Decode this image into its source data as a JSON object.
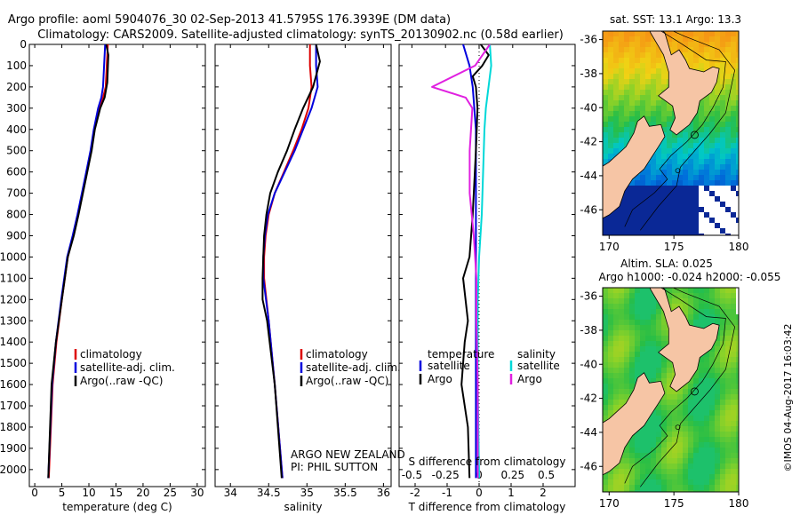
{
  "title": {
    "line1": "Argo profile: aoml 5904076_30 02-Sep-2013 41.5795S 176.3939E (DM data)",
    "line2": "Climatology: CARS2009. Satellite-adjusted climatology: synTS_20130902.nc (0.58d earlier)"
  },
  "colors": {
    "climatology": "#dd0000",
    "satellite_adj": "#0000dd",
    "argo": "#000000",
    "sal_satellite": "#00d8d8",
    "sal_argo": "#e020e0",
    "land": "#f6c5a5",
    "ocean_blank": "#ffffff"
  },
  "depth_axis": {
    "ticks": [
      "0",
      "100",
      "200",
      "300",
      "400",
      "500",
      "600",
      "700",
      "800",
      "900",
      "1000",
      "1100",
      "1200",
      "1300",
      "1400",
      "1500",
      "1600",
      "1700",
      "1800",
      "1900",
      "2000"
    ]
  },
  "chart_data": [
    {
      "type": "line",
      "id": "temperature",
      "xlabel": "temperature (deg C)",
      "xlim": [
        -1,
        31.5
      ],
      "ylim": [
        0,
        2080
      ],
      "xticks": [
        "0",
        "5",
        "10",
        "15",
        "20",
        "25",
        "30"
      ],
      "legend": [
        "climatology",
        "satellite-adj. clim.",
        "Argo(..raw -QC)"
      ],
      "series": [
        {
          "name": "climatology",
          "x": [
            13.5,
            13.3,
            13.1,
            12.6,
            11.9,
            11.0,
            10.4,
            9.6,
            8.8,
            8.0,
            7.1,
            6.1,
            5.0,
            4.0,
            3.3,
            2.6
          ],
          "y": [
            0,
            100,
            200,
            250,
            300,
            400,
            500,
            600,
            700,
            800,
            900,
            1000,
            1200,
            1400,
            1600,
            2040
          ]
        },
        {
          "name": "satellite-adj. clim.",
          "x": [
            13.0,
            12.8,
            12.6,
            12.3,
            11.7,
            10.9,
            10.3,
            9.5,
            8.7,
            7.9,
            7.0,
            6.0,
            4.9,
            3.9,
            3.2,
            2.5
          ],
          "y": [
            0,
            100,
            200,
            250,
            300,
            400,
            500,
            600,
            700,
            800,
            900,
            1000,
            1200,
            1400,
            1600,
            2040
          ]
        },
        {
          "name": "Argo(..raw -QC)",
          "x": [
            13.2,
            13.6,
            13.4,
            12.9,
            12.1,
            11.1,
            10.5,
            9.7,
            8.9,
            8.1,
            7.2,
            6.1,
            5.0,
            3.9,
            3.1,
            2.5
          ],
          "y": [
            0,
            50,
            180,
            250,
            300,
            400,
            500,
            600,
            700,
            800,
            900,
            1000,
            1200,
            1400,
            1600,
            2040
          ]
        }
      ]
    },
    {
      "type": "line",
      "id": "salinity",
      "xlabel": "salinity",
      "xlim": [
        33.8,
        36.1
      ],
      "ylim": [
        0,
        2080
      ],
      "xticks": [
        "34",
        "34.5",
        "35",
        "35.5",
        "36"
      ],
      "legend": [
        "climatology",
        "satellite-adj. clim.",
        "Argo(..raw -QC)"
      ],
      "annotation": [
        "ARGO NEW ZEALAND",
        "PI: PHIL SUTTON"
      ],
      "series": [
        {
          "name": "climatology",
          "x": [
            35.04,
            35.04,
            35.06,
            35.02,
            34.93,
            34.82,
            34.7,
            34.58,
            34.5,
            34.46,
            34.44,
            34.44,
            34.5,
            34.58,
            34.68
          ],
          "y": [
            0,
            100,
            200,
            300,
            400,
            500,
            600,
            700,
            800,
            900,
            1000,
            1100,
            1300,
            1600,
            2040
          ]
        },
        {
          "name": "satellite-adj. clim.",
          "x": [
            35.12,
            35.12,
            35.14,
            35.06,
            34.95,
            34.84,
            34.71,
            34.58,
            34.49,
            34.45,
            34.43,
            34.43,
            34.5,
            34.58,
            34.68
          ],
          "y": [
            0,
            100,
            200,
            300,
            400,
            500,
            600,
            700,
            800,
            900,
            1000,
            1100,
            1300,
            1600,
            2040
          ]
        },
        {
          "name": "Argo(..raw -QC)",
          "x": [
            35.12,
            35.17,
            35.08,
            34.95,
            34.84,
            34.74,
            34.62,
            34.52,
            34.47,
            34.44,
            34.43,
            34.42,
            34.42,
            34.48,
            34.58,
            34.67
          ],
          "y": [
            0,
            80,
            200,
            300,
            400,
            500,
            600,
            700,
            800,
            900,
            1000,
            1100,
            1200,
            1300,
            1600,
            2040
          ]
        }
      ]
    },
    {
      "type": "line",
      "id": "differences",
      "xlabel": "T difference from climatology",
      "xlabel_top": "S difference from climatology",
      "xlim": [
        -2.5,
        3.0
      ],
      "ylim": [
        0,
        2080
      ],
      "xticks": [
        "-2",
        "-1",
        "0",
        "1",
        "2"
      ],
      "sticks": [
        "-0.5",
        "-0.25",
        "0",
        "0.25",
        "0.5"
      ],
      "legend_headers": [
        "temperature",
        "salinity"
      ],
      "legend": [
        "satellite",
        "Argo",
        "satellite",
        "Argo"
      ],
      "series": [
        {
          "name": "temperature satellite",
          "x": [
            -0.5,
            -0.3,
            -0.2,
            -0.15,
            -0.1,
            -0.1,
            -0.1,
            -0.1,
            -0.1,
            -0.1
          ],
          "y": [
            0,
            100,
            200,
            300,
            400,
            600,
            800,
            1000,
            1400,
            2040
          ]
        },
        {
          "name": "temperature Argo",
          "x": [
            0.05,
            0.3,
            0.1,
            -0.2,
            -0.1,
            -0.05,
            -0.1,
            -0.2,
            -0.3,
            -0.5,
            -0.35,
            -0.45,
            -0.55,
            -0.35,
            -0.3
          ],
          "y": [
            0,
            50,
            100,
            150,
            200,
            300,
            500,
            800,
            1000,
            1100,
            1300,
            1400,
            1600,
            1800,
            2040
          ]
        },
        {
          "name": "salinity satellite",
          "x": [
            0.08,
            0.09,
            0.07,
            0.05,
            0.04,
            0.03,
            0.02,
            0.0,
            -0.01,
            -0.01,
            0.0
          ],
          "y": [
            0,
            100,
            200,
            300,
            400,
            600,
            800,
            1000,
            1200,
            1600,
            2040
          ]
        },
        {
          "name": "salinity Argo",
          "x": [
            0.08,
            -0.03,
            -0.35,
            -0.1,
            -0.05,
            -0.07,
            -0.07,
            -0.04,
            -0.02,
            -0.02,
            -0.01,
            -0.01
          ],
          "y": [
            0,
            100,
            200,
            250,
            300,
            500,
            700,
            900,
            1100,
            1300,
            1600,
            2040
          ]
        }
      ]
    },
    {
      "type": "heatmap",
      "id": "sst_map",
      "title": "sat. SST: 13.1 Argo: 13.3",
      "xlim": [
        169.5,
        180
      ],
      "ylim": [
        -47.5,
        -35.5
      ],
      "xticks": [
        "170",
        "175",
        "180"
      ],
      "yticks": [
        "-36",
        "-38",
        "-40",
        "-42",
        "-44",
        "-46"
      ]
    },
    {
      "type": "heatmap",
      "id": "sla_map",
      "title": [
        "Altim. SLA: 0.025",
        "Argo h1000: -0.024 h2000: -0.055"
      ],
      "xlim": [
        169.5,
        180
      ],
      "ylim": [
        -47.5,
        -35.5
      ],
      "xticks": [
        "170",
        "175",
        "180"
      ],
      "yticks": [
        "-36",
        "-38",
        "-40",
        "-42",
        "-44",
        "-46"
      ]
    }
  ],
  "footer": {
    "credit": "©IMOS 04-Aug-2017 16:03:42"
  }
}
